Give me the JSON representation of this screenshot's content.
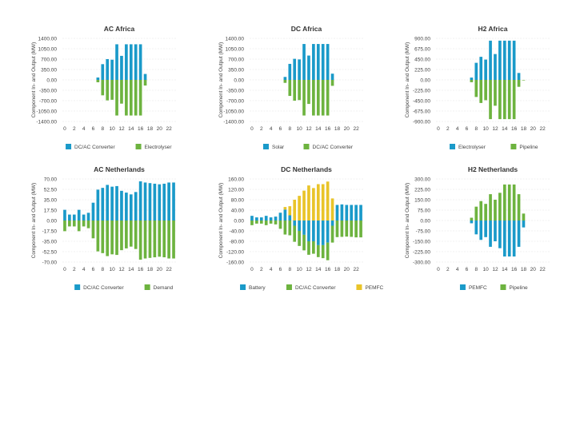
{
  "colors": {
    "blue": "#1a9ac9",
    "green": "#6db33f",
    "yellow": "#e9c429"
  },
  "chart_data": [
    {
      "type": "bar",
      "title": "AC Africa",
      "ylabel": "Component In- and Output (MW)",
      "x": [
        0,
        1,
        2,
        3,
        4,
        5,
        6,
        7,
        8,
        9,
        10,
        11,
        12,
        13,
        14,
        15,
        16,
        17,
        18,
        19,
        20,
        21,
        22,
        23
      ],
      "xticks": [
        "0",
        "2",
        "4",
        "6",
        "8",
        "10",
        "12",
        "14",
        "16",
        "18",
        "20",
        "22"
      ],
      "yticks": [
        "1400.00",
        "1050.00",
        "700.00",
        "350.00",
        "0.00",
        "-350.00",
        "-700.00",
        "-1050.00",
        "-1400.00"
      ],
      "ylim": [
        -1400,
        1400
      ],
      "legend": [
        "DC/AC Converter",
        "Electrolyser"
      ],
      "series": [
        {
          "name": "DC/AC Converter",
          "color": "blue",
          "values": [
            0,
            0,
            0,
            0,
            0,
            0,
            0,
            80,
            530,
            700,
            680,
            1200,
            810,
            1200,
            1200,
            1200,
            1200,
            200,
            0,
            0,
            0,
            0,
            0,
            0
          ]
        },
        {
          "name": "Electrolyser",
          "color": "green",
          "values": [
            0,
            0,
            0,
            0,
            0,
            0,
            0,
            -80,
            -520,
            -690,
            -670,
            -1200,
            -800,
            -1200,
            -1200,
            -1200,
            -1200,
            -190,
            0,
            0,
            0,
            0,
            0,
            0
          ]
        }
      ]
    },
    {
      "type": "bar",
      "title": "DC Africa",
      "ylabel": "Component In- and Output (MW)",
      "x": [
        0,
        1,
        2,
        3,
        4,
        5,
        6,
        7,
        8,
        9,
        10,
        11,
        12,
        13,
        14,
        15,
        16,
        17,
        18,
        19,
        20,
        21,
        22,
        23
      ],
      "xticks": [
        "0",
        "2",
        "4",
        "6",
        "8",
        "10",
        "12",
        "14",
        "16",
        "18",
        "20",
        "22"
      ],
      "yticks": [
        "1400.00",
        "1050.00",
        "700.00",
        "350.00",
        "0.00",
        "-350.00",
        "-700.00",
        "-1050.00",
        "-1400.00"
      ],
      "ylim": [
        -1400,
        1400
      ],
      "legend": [
        "Solar",
        "DC/AC Converter"
      ],
      "series": [
        {
          "name": "Solar",
          "color": "blue",
          "values": [
            0,
            0,
            0,
            0,
            0,
            0,
            0,
            100,
            540,
            710,
            690,
            1210,
            820,
            1210,
            1210,
            1210,
            1210,
            210,
            0,
            0,
            0,
            0,
            0,
            0
          ]
        },
        {
          "name": "DC/AC Converter",
          "color": "green",
          "values": [
            0,
            0,
            0,
            0,
            0,
            0,
            0,
            -100,
            -540,
            -700,
            -680,
            -1200,
            -810,
            -1200,
            -1200,
            -1200,
            -1200,
            -200,
            0,
            0,
            0,
            0,
            0,
            0
          ]
        }
      ]
    },
    {
      "type": "bar",
      "title": "H2 Africa",
      "ylabel": "Component In- and Output (MW)",
      "x": [
        0,
        1,
        2,
        3,
        4,
        5,
        6,
        7,
        8,
        9,
        10,
        11,
        12,
        13,
        14,
        15,
        16,
        17,
        18,
        19,
        20,
        21,
        22,
        23
      ],
      "xticks": [
        "0",
        "2",
        "4",
        "6",
        "8",
        "10",
        "12",
        "14",
        "16",
        "18",
        "20",
        "22"
      ],
      "yticks": [
        "900.00",
        "675.00",
        "450.00",
        "225.00",
        "0.00",
        "-225.00",
        "-450.00",
        "-675.00",
        "-900.00"
      ],
      "ylim": [
        -900,
        900
      ],
      "legend": [
        "Electrolyser",
        "Pipeline"
      ],
      "series": [
        {
          "name": "Electrolyser",
          "color": "blue",
          "values": [
            0,
            0,
            0,
            0,
            0,
            0,
            0,
            50,
            370,
            500,
            440,
            850,
            560,
            850,
            850,
            850,
            850,
            150,
            0,
            0,
            0,
            0,
            0,
            0
          ]
        },
        {
          "name": "Pipeline",
          "color": "green",
          "values": [
            0,
            0,
            0,
            0,
            0,
            0,
            0,
            -50,
            -370,
            -500,
            -440,
            -850,
            -560,
            -850,
            -850,
            -850,
            -850,
            -150,
            -5,
            0,
            0,
            0,
            0,
            0
          ]
        }
      ]
    },
    {
      "type": "bar",
      "title": "AC Netherlands",
      "ylabel": "Component In- and Output (MW)",
      "x": [
        0,
        1,
        2,
        3,
        4,
        5,
        6,
        7,
        8,
        9,
        10,
        11,
        12,
        13,
        14,
        15,
        16,
        17,
        18,
        19,
        20,
        21,
        22,
        23
      ],
      "xticks": [
        "0",
        "2",
        "4",
        "6",
        "8",
        "10",
        "12",
        "14",
        "16",
        "18",
        "20",
        "22"
      ],
      "yticks": [
        "70.00",
        "52.50",
        "35.00",
        "17.50",
        "0.00",
        "-17.50",
        "-35.00",
        "-52.50",
        "-70.00"
      ],
      "ylim": [
        -70,
        70
      ],
      "legend": [
        "DC/AC Converter",
        "Demand"
      ],
      "series": [
        {
          "name": "DC/AC Converter",
          "color": "blue",
          "values": [
            18,
            10,
            10,
            18,
            10,
            13,
            30,
            52,
            55,
            60,
            57,
            58,
            50,
            47,
            44,
            48,
            66,
            64,
            63,
            62,
            61,
            62,
            64,
            64
          ]
        },
        {
          "name": "Demand",
          "color": "green",
          "values": [
            -18,
            -10,
            -10,
            -18,
            -10,
            -13,
            -30,
            -52,
            -55,
            -60,
            -57,
            -58,
            -50,
            -47,
            -44,
            -48,
            -66,
            -64,
            -63,
            -62,
            -61,
            -62,
            -64,
            -64
          ]
        }
      ]
    },
    {
      "type": "bar",
      "title": "DC Netherlands",
      "ylabel": "Component In- and Output (MW)",
      "x": [
        0,
        1,
        2,
        3,
        4,
        5,
        6,
        7,
        8,
        9,
        10,
        11,
        12,
        13,
        14,
        15,
        16,
        17,
        18,
        19,
        20,
        21,
        22,
        23
      ],
      "xticks": [
        "0",
        "2",
        "4",
        "6",
        "8",
        "10",
        "12",
        "14",
        "16",
        "18",
        "20",
        "22"
      ],
      "yticks": [
        "160.00",
        "120.00",
        "80.00",
        "40.00",
        "0.00",
        "-40.00",
        "-80.00",
        "-120.00",
        "-160.00"
      ],
      "ylim": [
        -160,
        160
      ],
      "legend": [
        "Battery",
        "DC/AC Converter",
        "PEMFC"
      ],
      "series": [
        {
          "name": "Battery",
          "color": "blue",
          "values": [
            18,
            12,
            12,
            18,
            12,
            15,
            30,
            42,
            20,
            -20,
            -40,
            -55,
            -80,
            -80,
            -95,
            -95,
            -85,
            -20,
            60,
            62,
            60,
            60,
            60,
            60
          ]
        },
        {
          "name": "DC/AC Converter",
          "color": "green",
          "values": [
            -18,
            -12,
            -12,
            -18,
            -12,
            -15,
            -32,
            -54,
            -57,
            -62,
            -58,
            -60,
            -52,
            -48,
            -46,
            -50,
            -68,
            -65,
            -64,
            -63,
            -62,
            -63,
            -65,
            -65
          ]
        },
        {
          "name": "PEMFC",
          "color": "yellow",
          "values": [
            0,
            0,
            0,
            0,
            0,
            0,
            0,
            10,
            35,
            80,
            95,
            115,
            135,
            125,
            140,
            140,
            150,
            85,
            0,
            0,
            0,
            0,
            0,
            0
          ]
        }
      ]
    },
    {
      "type": "bar",
      "title": "H2 Netherlands",
      "ylabel": "Component In- and Output (MW)",
      "x": [
        0,
        1,
        2,
        3,
        4,
        5,
        6,
        7,
        8,
        9,
        10,
        11,
        12,
        13,
        14,
        15,
        16,
        17,
        18,
        19,
        20,
        21,
        22,
        23
      ],
      "xticks": [
        "0",
        "2",
        "4",
        "6",
        "8",
        "10",
        "12",
        "14",
        "16",
        "18",
        "20",
        "22"
      ],
      "yticks": [
        "300.00",
        "225.00",
        "150.00",
        "75.00",
        "0.00",
        "-75.00",
        "-150.00",
        "-225.00",
        "-300.00"
      ],
      "ylim": [
        -300,
        300
      ],
      "legend": [
        "PEMFC",
        "Pipeline"
      ],
      "series": [
        {
          "name": "PEMFC",
          "color": "blue",
          "values": [
            0,
            0,
            0,
            0,
            0,
            0,
            0,
            -20,
            -100,
            -140,
            -120,
            -190,
            -150,
            -200,
            -260,
            -260,
            -260,
            -190,
            -50,
            0,
            0,
            0,
            0,
            0
          ]
        },
        {
          "name": "Pipeline",
          "color": "green",
          "values": [
            0,
            0,
            0,
            0,
            0,
            0,
            0,
            20,
            100,
            140,
            120,
            190,
            150,
            200,
            260,
            260,
            260,
            190,
            50,
            0,
            0,
            0,
            0,
            0
          ]
        }
      ]
    }
  ]
}
